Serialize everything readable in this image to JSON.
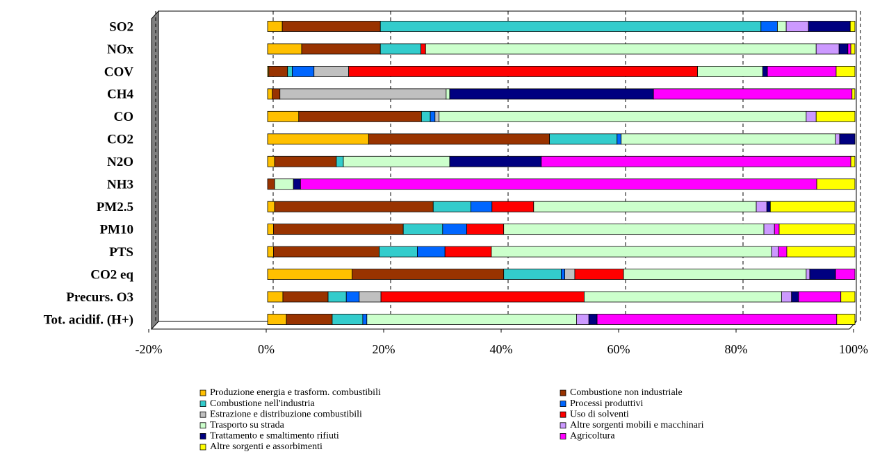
{
  "chart_data": {
    "type": "stacked_bar_horizontal",
    "categories": [
      "SO2",
      "NOx",
      "COV",
      "CH4",
      "CO",
      "CO2",
      "N2O",
      "NH3",
      "PM2.5",
      "PM10",
      "PTS",
      "CO2 eq",
      "Precurs. O3",
      "Tot. acidif. (H+)"
    ],
    "xlim": [
      -20,
      100
    ],
    "xticks": [
      {
        "value": -20,
        "label": "-20%"
      },
      {
        "value": 0,
        "label": "0%"
      },
      {
        "value": 20,
        "label": "20%"
      },
      {
        "value": 40,
        "label": "40%"
      },
      {
        "value": 60,
        "label": "60%"
      },
      {
        "value": 80,
        "label": "80%"
      },
      {
        "value": 100,
        "label": "100%"
      }
    ],
    "grid": true,
    "series": [
      {
        "name": "Produzione energia e trasform. combustibili",
        "color": "#FFC000",
        "values": [
          2.5,
          5.8,
          0.2,
          0.8,
          5.3,
          17.2,
          1.2,
          0,
          1.2,
          1.0,
          1.0,
          14.4,
          2.6,
          3.2
        ]
      },
      {
        "name": "Combustione non industriale",
        "color": "#993300",
        "values": [
          16.7,
          13.4,
          3.2,
          1.3,
          20.9,
          30.8,
          10.5,
          1.2,
          27.0,
          22.1,
          18.0,
          25.8,
          7.7,
          7.8
        ]
      },
      {
        "name": "Combustione nell'industria",
        "color": "#33CCCC",
        "values": [
          64.8,
          6.9,
          0.8,
          0,
          1.5,
          11.5,
          1.2,
          0,
          6.4,
          6.7,
          6.5,
          9.8,
          3.1,
          5.2
        ]
      },
      {
        "name": "Processi produttivi",
        "color": "#0066FF",
        "values": [
          2.8,
          0,
          3.7,
          0,
          0.8,
          0.7,
          0,
          0,
          3.6,
          4.1,
          4.7,
          0.6,
          2.2,
          0.7
        ]
      },
      {
        "name": "Estrazione e distribuzione combustibili",
        "color": "#C0C0C0",
        "values": [
          0,
          0,
          5.9,
          28.3,
          0.7,
          0,
          0,
          0,
          0,
          0,
          0,
          1.7,
          3.7,
          0
        ]
      },
      {
        "name": "Uso di solventi",
        "color": "#FF0000",
        "values": [
          0,
          0.8,
          59.4,
          0,
          0,
          0,
          0,
          0,
          7.1,
          6.3,
          7.9,
          8.3,
          34.6,
          0
        ]
      },
      {
        "name": "Trasporto su strada",
        "color": "#CCFFCC",
        "values": [
          1.5,
          66.5,
          11.1,
          0.6,
          62.5,
          36.5,
          18.1,
          3.2,
          37.9,
          44.3,
          47.7,
          31.1,
          33.6,
          35.7
        ]
      },
      {
        "name": "Altre sorgenti mobili e macchinari",
        "color": "#CC99FF",
        "values": [
          3.8,
          3.9,
          0,
          0,
          1.7,
          0.7,
          0,
          0,
          1.8,
          1.8,
          1.2,
          0.6,
          1.7,
          2.1
        ]
      },
      {
        "name": "Trattamento e smaltimento rifiuti",
        "color": "#000080",
        "values": [
          7.1,
          1.5,
          0.8,
          34.7,
          0,
          2.6,
          15.6,
          1.2,
          0.6,
          0,
          0,
          4.4,
          1.2,
          1.4
        ]
      },
      {
        "name": "Agricoltura",
        "color": "#FF00FF",
        "values": [
          0,
          0.5,
          11.7,
          33.8,
          0,
          0,
          52.7,
          87.9,
          0,
          0.8,
          1.4,
          3.3,
          7.2,
          40.8
        ]
      },
      {
        "name": "Altre sorgenti e assorbimenti",
        "color": "#FFFF00",
        "values": [
          0.8,
          0.7,
          3.2,
          0.5,
          6.6,
          0,
          0.7,
          6.5,
          14.4,
          12.9,
          11.6,
          0,
          2.4,
          3.1
        ]
      }
    ]
  }
}
